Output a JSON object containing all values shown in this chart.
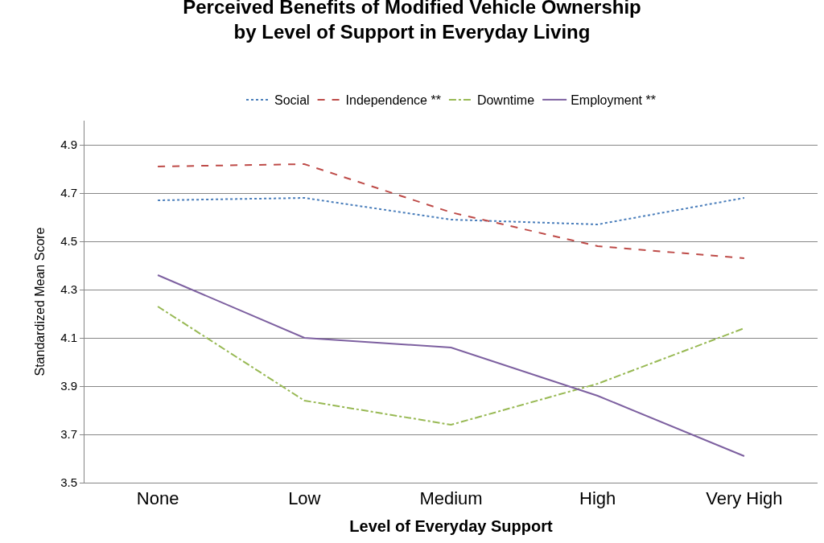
{
  "chart_data": {
    "type": "line",
    "title": "Perceived Benefits of Modified Vehicle Ownership\nby Level of Support in Everyday Living",
    "xlabel": "Level of Everyday Support",
    "ylabel": "Standardized Mean Score",
    "categories": [
      "None",
      "Low",
      "Medium",
      "High",
      "Very High"
    ],
    "series": [
      {
        "name": "Social",
        "color": "#4a7ebb",
        "line_style": "dotted",
        "values": [
          4.67,
          4.68,
          4.59,
          4.57,
          4.68
        ]
      },
      {
        "name": "Independence **",
        "color": "#be4b48",
        "line_style": "dashed",
        "values": [
          4.81,
          4.82,
          4.62,
          4.48,
          4.43
        ]
      },
      {
        "name": "Downtime",
        "color": "#98b954",
        "line_style": "dashdot",
        "values": [
          4.23,
          3.84,
          3.74,
          3.91,
          4.14
        ]
      },
      {
        "name": "Employment **",
        "color": "#7d60a0",
        "line_style": "solid",
        "values": [
          4.36,
          4.1,
          4.06,
          3.86,
          3.61
        ]
      }
    ],
    "ylim": [
      3.5,
      5.0
    ],
    "yticks": [
      3.5,
      3.7,
      3.9,
      4.1,
      4.3,
      4.5,
      4.7,
      4.9
    ],
    "grid": "y",
    "legend": "top",
    "marker": "none"
  }
}
